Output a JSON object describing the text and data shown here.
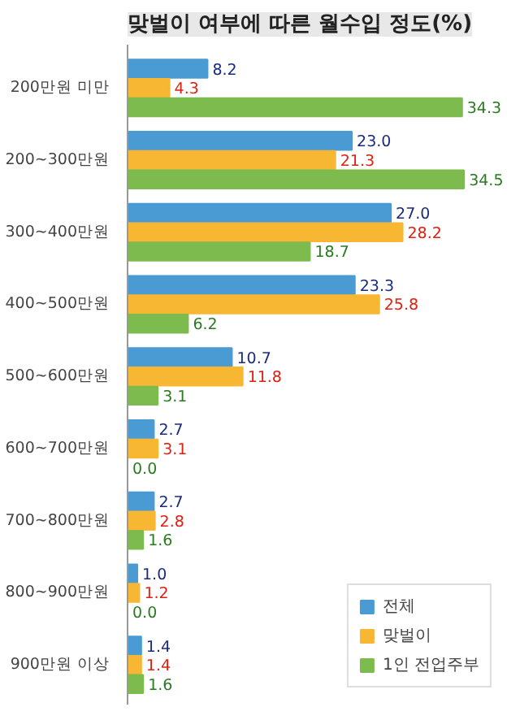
{
  "chart_data": {
    "type": "bar",
    "orientation": "horizontal",
    "title": "맞벌이 여부에 따른 월수입 정도(%)",
    "categories": [
      "200만원 미만",
      "200~300만원",
      "300~400만원",
      "400~500만원",
      "500~600만원",
      "600~700만원",
      "700~800만원",
      "800~900만원",
      "900만원 이상"
    ],
    "series": [
      {
        "name": "전체",
        "color": "#4a9bd4",
        "values": [
          8.2,
          23.0,
          27.0,
          23.3,
          10.7,
          2.7,
          2.7,
          1.0,
          1.4
        ],
        "value_labels": [
          "8.2",
          "23.0",
          "27.0",
          "23.3",
          "10.7",
          "2.7",
          "2.7",
          "1.0",
          "1.4"
        ]
      },
      {
        "name": "맞벌이",
        "color": "#f7b733",
        "values": [
          4.3,
          21.3,
          28.2,
          25.8,
          11.8,
          3.1,
          2.8,
          1.2,
          1.4
        ],
        "value_labels": [
          "4.3",
          "21.3",
          "28.2",
          "25.8",
          "11.8",
          "3.1",
          "2.8",
          "1.2",
          "1.4"
        ]
      },
      {
        "name": "1인 전업주부",
        "color": "#7dbb4e",
        "values": [
          34.3,
          34.5,
          18.7,
          6.2,
          3.1,
          0.0,
          1.6,
          0.0,
          1.6
        ],
        "value_labels": [
          "34.3",
          "34.5",
          "18.7",
          "6.2",
          "3.1",
          "0.0",
          "1.6",
          "0.0",
          "1.6"
        ]
      }
    ],
    "legend": "bottom right",
    "grid": false
  }
}
